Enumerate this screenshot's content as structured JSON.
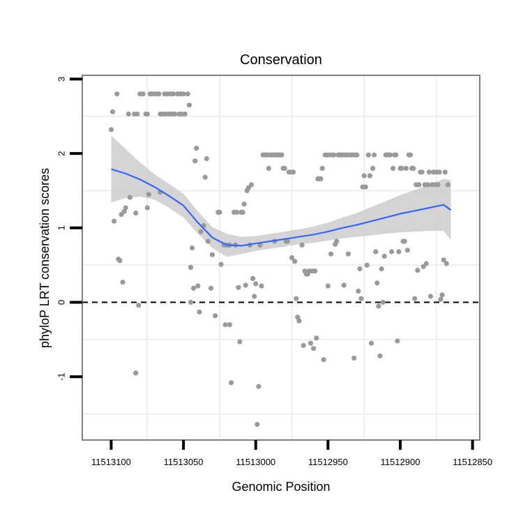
{
  "chart_data": {
    "type": "scatter",
    "title": "Conservation",
    "xlabel": "Genomic Position",
    "ylabel": "phyloP LRT conservation scores",
    "x_reversed": true,
    "xlim": [
      11513120,
      11512845
    ],
    "ylim": [
      -1.85,
      3.05
    ],
    "x_ticks": [
      11513100,
      11513050,
      11513000,
      11512950,
      11512900,
      11512850
    ],
    "x_tick_labels": [
      "11513100",
      "11513050",
      "11513000",
      "11512950",
      "11512900",
      "11512850"
    ],
    "y_ticks": [
      -1,
      0,
      1,
      2,
      3
    ],
    "y_tick_labels": [
      "-1",
      "0",
      "1",
      "2",
      "3"
    ],
    "x_minor_gridlines": [
      11513075,
      11513025,
      11512975,
      11512925,
      11512875
    ],
    "y_minor_gridlines": [
      -1.5,
      -0.5,
      0.5,
      1.5,
      2.5
    ],
    "reference_line_y": 0,
    "colors": {
      "points": "#9a9a9a",
      "smooth_line": "#3366ff",
      "confidence_band": "#cccccc",
      "gridline": "#eeeeee",
      "panel_border": "#7f7f7f",
      "reference_line": "#000000"
    },
    "points": [
      [
        11513100,
        2.32
      ],
      [
        11513099,
        2.56
      ],
      [
        11513098,
        1.09
      ],
      [
        11513096,
        2.8
      ],
      [
        11513095,
        0.58
      ],
      [
        11513094,
        0.56
      ],
      [
        11513093,
        1.18
      ],
      [
        11513092,
        0.27
      ],
      [
        11513091,
        1.22
      ],
      [
        11513090,
        1.27
      ],
      [
        11513088,
        2.53
      ],
      [
        11513087,
        1.41
      ],
      [
        11513084,
        2.53
      ],
      [
        11513083,
        1.2
      ],
      [
        11513083,
        -0.95
      ],
      [
        11513082,
        2.53
      ],
      [
        11513081,
        -0.04
      ],
      [
        11513080,
        2.8
      ],
      [
        11513078,
        2.8
      ],
      [
        11513076,
        2.53
      ],
      [
        11513075,
        1.27
      ],
      [
        11513075,
        2.53
      ],
      [
        11513074,
        1.45
      ],
      [
        11513073,
        2.8
      ],
      [
        11513072,
        2.8
      ],
      [
        11513070,
        2.8
      ],
      [
        11513068,
        2.8
      ],
      [
        11513067,
        2.8
      ],
      [
        11513066,
        1.48
      ],
      [
        11513066,
        2.53
      ],
      [
        11513064,
        2.53
      ],
      [
        11513063,
        2.8
      ],
      [
        11513062,
        2.53
      ],
      [
        11513061,
        2.8
      ],
      [
        11513060,
        2.53
      ],
      [
        11513059,
        2.8
      ],
      [
        11513058,
        2.53
      ],
      [
        11513057,
        2.8
      ],
      [
        11513056,
        2.53
      ],
      [
        11513054,
        2.8
      ],
      [
        11513053,
        2.53
      ],
      [
        11513052,
        2.8
      ],
      [
        11513051,
        2.53
      ],
      [
        11513050,
        2.8
      ],
      [
        11513049,
        2.53
      ],
      [
        11513047,
        2.8
      ],
      [
        11513046,
        2.65
      ],
      [
        11513045,
        0.47
      ],
      [
        11513045,
        0.0
      ],
      [
        11513044,
        0.73
      ],
      [
        11513043,
        0.19
      ],
      [
        11513042,
        1.9
      ],
      [
        11513041,
        2.07
      ],
      [
        11513040,
        0.22
      ],
      [
        11513039,
        -0.13
      ],
      [
        11513038,
        0.95
      ],
      [
        11513036,
        1.03
      ],
      [
        11513035,
        1.68
      ],
      [
        11513034,
        1.93
      ],
      [
        11513033,
        0.82
      ],
      [
        11513031,
        0.19
      ],
      [
        11513030,
        0.64
      ],
      [
        11513028,
        -0.18
      ],
      [
        11513026,
        1.21
      ],
      [
        11513025,
        1.21
      ],
      [
        11513024,
        0.51
      ],
      [
        11513022,
        0.77
      ],
      [
        11513021,
        -0.3
      ],
      [
        11513020,
        0.77
      ],
      [
        11513019,
        0.77
      ],
      [
        11513018,
        -0.3
      ],
      [
        11513018,
        0.77
      ],
      [
        11513017,
        -1.08
      ],
      [
        11513015,
        1.21
      ],
      [
        11513014,
        0.77
      ],
      [
        11513013,
        1.21
      ],
      [
        11513012,
        0.2
      ],
      [
        11513011,
        -0.53
      ],
      [
        11513010,
        1.21
      ],
      [
        11513009,
        1.21
      ],
      [
        11513008,
        1.32
      ],
      [
        11513007,
        0.23
      ],
      [
        11513006,
        1.5
      ],
      [
        11513005,
        1.54
      ],
      [
        11513004,
        0.77
      ],
      [
        11513003,
        1.58
      ],
      [
        11513002,
        0.32
      ],
      [
        11513001,
        0.08
      ],
      [
        11513000,
        0.25
      ],
      [
        11512999,
        -1.64
      ],
      [
        11512998,
        -1.13
      ],
      [
        11512997,
        0.77
      ],
      [
        11512996,
        0.22
      ],
      [
        11512995,
        1.98
      ],
      [
        11512994,
        1.98
      ],
      [
        11512993,
        1.98
      ],
      [
        11512992,
        1.98
      ],
      [
        11512991,
        1.8
      ],
      [
        11512990,
        1.98
      ],
      [
        11512989,
        1.98
      ],
      [
        11512988,
        1.98
      ],
      [
        11512987,
        0.82
      ],
      [
        11512986,
        1.98
      ],
      [
        11512985,
        1.98
      ],
      [
        11512984,
        1.98
      ],
      [
        11512983,
        1.98
      ],
      [
        11512982,
        1.98
      ],
      [
        11512981,
        1.8
      ],
      [
        11512980,
        1.8
      ],
      [
        11512979,
        0.82
      ],
      [
        11512978,
        0.82
      ],
      [
        11512977,
        1.75
      ],
      [
        11512976,
        1.75
      ],
      [
        11512975,
        0.6
      ],
      [
        11512974,
        1.75
      ],
      [
        11512973,
        0.55
      ],
      [
        11512972,
        0.05
      ],
      [
        11512971,
        -0.2
      ],
      [
        11512970,
        -0.25
      ],
      [
        11512968,
        0.77
      ],
      [
        11512967,
        -0.58
      ],
      [
        11512966,
        0.42
      ],
      [
        11512965,
        0.38
      ],
      [
        11512964,
        0.38
      ],
      [
        11512963,
        0.42
      ],
      [
        11512962,
        -0.55
      ],
      [
        11512961,
        0.42
      ],
      [
        11512960,
        -0.62
      ],
      [
        11512959,
        0.42
      ],
      [
        11512958,
        -0.48
      ],
      [
        11512957,
        1.66
      ],
      [
        11512956,
        1.66
      ],
      [
        11512955,
        1.66
      ],
      [
        11512954,
        1.8
      ],
      [
        11512953,
        -0.77
      ],
      [
        11512952,
        1.98
      ],
      [
        11512951,
        1.98
      ],
      [
        11512950,
        0.22
      ],
      [
        11512949,
        1.98
      ],
      [
        11512948,
        0.65
      ],
      [
        11512947,
        1.98
      ],
      [
        11512946,
        1.98
      ],
      [
        11512945,
        0.78
      ],
      [
        11512944,
        0.82
      ],
      [
        11512943,
        1.98
      ],
      [
        11512942,
        1.98
      ],
      [
        11512941,
        1.98
      ],
      [
        11512940,
        1.98
      ],
      [
        11512939,
        0.23
      ],
      [
        11512938,
        1.98
      ],
      [
        11512937,
        1.98
      ],
      [
        11512936,
        0.65
      ],
      [
        11512935,
        1.98
      ],
      [
        11512934,
        1.98
      ],
      [
        11512933,
        1.98
      ],
      [
        11512932,
        -0.75
      ],
      [
        11512931,
        1.98
      ],
      [
        11512930,
        1.98
      ],
      [
        11512929,
        0.15
      ],
      [
        11512928,
        0.45
      ],
      [
        11512927,
        0.05
      ],
      [
        11512926,
        1.55
      ],
      [
        11512925,
        1.7
      ],
      [
        11512924,
        1.55
      ],
      [
        11512923,
        0.5
      ],
      [
        11512922,
        1.98
      ],
      [
        11512921,
        1.7
      ],
      [
        11512920,
        -0.55
      ],
      [
        11512919,
        1.8
      ],
      [
        11512918,
        1.98
      ],
      [
        11512917,
        0.68
      ],
      [
        11512916,
        0.26
      ],
      [
        11512915,
        -0.05
      ],
      [
        11512914,
        -0.72
      ],
      [
        11512913,
        0.45
      ],
      [
        11512912,
        0.0
      ],
      [
        11512911,
        0.62
      ],
      [
        11512910,
        1.98
      ],
      [
        11512909,
        1.98
      ],
      [
        11512908,
        1.98
      ],
      [
        11512907,
        1.98
      ],
      [
        11512906,
        0.68
      ],
      [
        11512905,
        1.8
      ],
      [
        11512904,
        1.98
      ],
      [
        11512903,
        1.98
      ],
      [
        11512902,
        -0.52
      ],
      [
        11512901,
        0.68
      ],
      [
        11512900,
        1.8
      ],
      [
        11512899,
        1.8
      ],
      [
        11512898,
        0.82
      ],
      [
        11512897,
        0.82
      ],
      [
        11512896,
        1.8
      ],
      [
        11512895,
        0.7
      ],
      [
        11512894,
        1.98
      ],
      [
        11512893,
        1.98
      ],
      [
        11512892,
        1.8
      ],
      [
        11512891,
        1.8
      ],
      [
        11512890,
        0.05
      ],
      [
        11512889,
        1.58
      ],
      [
        11512888,
        0.43
      ],
      [
        11512887,
        1.58
      ],
      [
        11512886,
        1.75
      ],
      [
        11512885,
        1.75
      ],
      [
        11512884,
        0.48
      ],
      [
        11512883,
        1.58
      ],
      [
        11512882,
        0.52
      ],
      [
        11512881,
        1.58
      ],
      [
        11512880,
        1.75
      ],
      [
        11512879,
        0.08
      ],
      [
        11512878,
        1.58
      ],
      [
        11512877,
        1.75
      ],
      [
        11512876,
        1.58
      ],
      [
        11512875,
        1.75
      ],
      [
        11512874,
        1.58
      ],
      [
        11512873,
        1.75
      ],
      [
        11512872,
        0.04
      ],
      [
        11512871,
        0.1
      ],
      [
        11512870,
        0.57
      ],
      [
        11512869,
        1.75
      ],
      [
        11512868,
        0.52
      ],
      [
        11512867,
        1.58
      ]
    ],
    "smooth": [
      [
        11513100,
        1.79,
        1.34,
        2.24
      ],
      [
        11513090,
        1.73,
        1.4,
        2.06
      ],
      [
        11513080,
        1.65,
        1.42,
        1.88
      ],
      [
        11513070,
        1.55,
        1.38,
        1.72
      ],
      [
        11513060,
        1.43,
        1.27,
        1.59
      ],
      [
        11513050,
        1.3,
        1.14,
        1.46
      ],
      [
        11513040,
        1.07,
        0.92,
        1.22
      ],
      [
        11513030,
        0.87,
        0.73,
        1.01
      ],
      [
        11513020,
        0.77,
        0.61,
        0.92
      ],
      [
        11513010,
        0.76,
        0.65,
        0.88
      ],
      [
        11513000,
        0.79,
        0.69,
        0.89
      ],
      [
        11512990,
        0.82,
        0.72,
        0.92
      ],
      [
        11512980,
        0.85,
        0.75,
        0.95
      ],
      [
        11512970,
        0.88,
        0.78,
        0.98
      ],
      [
        11512960,
        0.91,
        0.8,
        1.02
      ],
      [
        11512950,
        0.95,
        0.83,
        1.07
      ],
      [
        11512940,
        1.0,
        0.86,
        1.14
      ],
      [
        11512930,
        1.04,
        0.88,
        1.2
      ],
      [
        11512920,
        1.09,
        0.9,
        1.28
      ],
      [
        11512910,
        1.14,
        0.92,
        1.36
      ],
      [
        11512900,
        1.19,
        0.94,
        1.44
      ],
      [
        11512890,
        1.23,
        0.95,
        1.51
      ],
      [
        11512880,
        1.27,
        0.96,
        1.58
      ],
      [
        11512870,
        1.31,
        0.96,
        1.66
      ],
      [
        11512865,
        1.24,
        0.84,
        1.64
      ]
    ]
  }
}
